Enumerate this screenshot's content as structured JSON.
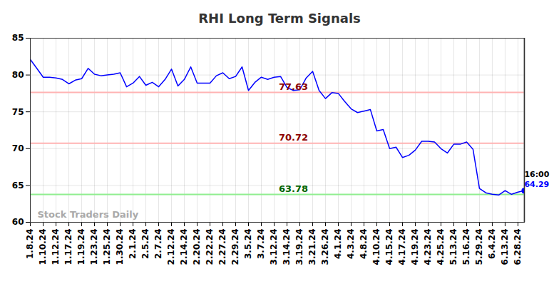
{
  "chart_data": {
    "type": "line",
    "title": "RHI Long Term Signals",
    "categories": [
      "1.8.24",
      null,
      "1.10.24",
      null,
      "1.12.24",
      null,
      "1.17.24",
      null,
      "1.19.24",
      null,
      "1.23.24",
      null,
      "1.25.24",
      null,
      "1.30.24",
      null,
      "2.1.24",
      null,
      "2.5.24",
      null,
      "2.7.24",
      null,
      "2.12.24",
      null,
      "2.14.24",
      null,
      "2.20.24",
      null,
      "2.22.24",
      null,
      "2.27.24",
      null,
      "2.29.24",
      null,
      "3.5.24",
      null,
      "3.7.24",
      null,
      "3.12.24",
      null,
      "3.14.24",
      null,
      "3.19.24",
      null,
      "3.21.24",
      null,
      "3.26.24",
      null,
      "4.1.24",
      null,
      "4.3.24",
      null,
      "4.8.24",
      null,
      "4.10.24",
      null,
      "4.15.24",
      null,
      "4.17.24",
      null,
      "4.19.24",
      null,
      "4.23.24",
      null,
      "4.25.24",
      null,
      "5.13.24",
      null,
      "5.16.24",
      null,
      "5.29.24",
      null,
      "6.4.24",
      null,
      "6.13.24",
      null,
      "6.28.24",
      null
    ],
    "values": [
      82.1,
      80.9,
      79.7,
      79.7,
      79.6,
      79.4,
      78.8,
      79.3,
      79.5,
      80.9,
      80.1,
      79.9,
      80.0,
      80.1,
      80.3,
      78.4,
      78.9,
      79.8,
      78.6,
      79.0,
      78.4,
      79.4,
      80.8,
      78.5,
      79.4,
      81.1,
      78.9,
      78.9,
      78.9,
      79.9,
      80.3,
      79.5,
      79.8,
      81.1,
      77.9,
      79.0,
      79.7,
      79.4,
      79.7,
      79.8,
      78.3,
      77.9,
      78.0,
      79.6,
      80.5,
      77.9,
      76.8,
      77.6,
      77.5,
      76.4,
      75.4,
      74.9,
      75.1,
      75.3,
      72.4,
      72.6,
      70.0,
      70.2,
      68.8,
      69.1,
      69.8,
      71.0,
      71.0,
      70.9,
      70.0,
      69.4,
      70.6,
      70.6,
      70.9,
      69.9,
      64.6,
      64.0,
      63.8,
      63.7,
      64.3,
      63.8,
      64.1,
      64.29
    ],
    "color": "#0000ff",
    "ylim": [
      60,
      85
    ],
    "yticks": [
      60,
      65,
      70,
      75,
      80,
      85
    ],
    "grid": true,
    "levels": [
      {
        "value": 77.63,
        "color": "#ffb3b3",
        "label_color": "#8b0000"
      },
      {
        "value": 70.72,
        "color": "#ffb3b3",
        "label_color": "#8b0000"
      },
      {
        "value": 63.78,
        "color": "#90ee90",
        "label_color": "#006400"
      }
    ],
    "last_label": "16:00",
    "watermark": "Stock Traders Daily"
  }
}
